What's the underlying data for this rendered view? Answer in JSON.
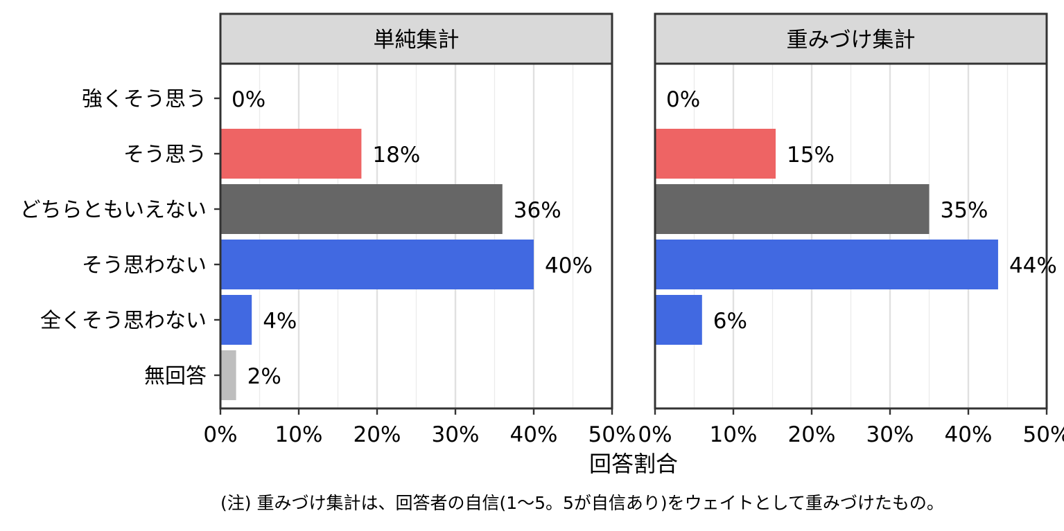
{
  "chart_data": {
    "type": "bar",
    "orientation": "horizontal",
    "categories": [
      "強くそう思う",
      "そう思う",
      "どちらともいえない",
      "そう思わない",
      "全くそう思わない",
      "無回答"
    ],
    "xlabel": "回答割合",
    "xlim": [
      0,
      50
    ],
    "xticks": [
      "0%",
      "10%",
      "20%",
      "30%",
      "40%",
      "50%"
    ],
    "grid": true,
    "legend": "none",
    "colors": {
      "強くそう思う": "#EE6464",
      "そう思う": "#EE6464",
      "どちらともいえない": "#666666",
      "そう思わない": "#4169E1",
      "全くそう思わない": "#4169E1",
      "無回答": "#BEBEBE"
    },
    "panels": [
      {
        "title": "単純集計",
        "values": [
          0,
          18,
          36,
          40,
          4,
          2
        ],
        "labels": [
          "0%",
          "18%",
          "36%",
          "40%",
          "4%",
          "2%"
        ]
      },
      {
        "title": "重みづけ集計",
        "values": [
          0,
          15.4,
          35,
          43.8,
          6,
          null
        ],
        "labels": [
          "0%",
          "15%",
          "35%",
          "44%",
          "6%",
          null
        ]
      }
    ],
    "note": "(注) 重みづけ集計は、回答者の自信(1～5。5が自信あり)をウェイトとして重みづけたもの。"
  }
}
